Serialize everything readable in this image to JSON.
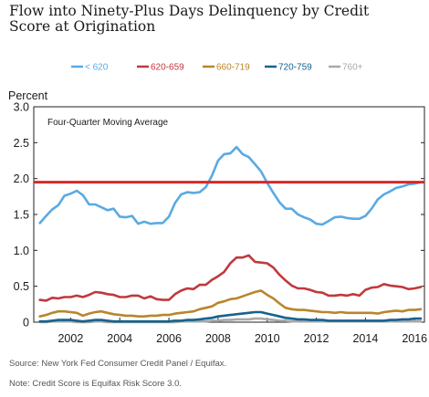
{
  "chart_data": {
    "type": "line",
    "title": "Flow into Ninety-Plus Days Delinquency by Credit Score at Origination",
    "ylabel": "Percent",
    "annotation": "Four-Quarter Moving Average",
    "ylim": [
      0,
      3.0
    ],
    "yticks": [
      "0",
      "0.5",
      "1.0",
      "1.5",
      "2.0",
      "2.5",
      "3.0"
    ],
    "xlim": [
      2000.5,
      2016.4
    ],
    "xticks": [
      "2002",
      "2004",
      "2006",
      "2008",
      "2010",
      "2012",
      "2014",
      "2016"
    ],
    "grid": false,
    "legend_position": "top",
    "reference_line": {
      "value": 1.95,
      "color": "#d62828"
    },
    "x": [
      2000.75,
      2001.0,
      2001.25,
      2001.5,
      2001.75,
      2002.0,
      2002.25,
      2002.5,
      2002.75,
      2003.0,
      2003.25,
      2003.5,
      2003.75,
      2004.0,
      2004.25,
      2004.5,
      2004.75,
      2005.0,
      2005.25,
      2005.5,
      2005.75,
      2006.0,
      2006.25,
      2006.5,
      2006.75,
      2007.0,
      2007.25,
      2007.5,
      2007.75,
      2008.0,
      2008.25,
      2008.5,
      2008.75,
      2009.0,
      2009.25,
      2009.5,
      2009.75,
      2010.0,
      2010.25,
      2010.5,
      2010.75,
      2011.0,
      2011.25,
      2011.5,
      2011.75,
      2012.0,
      2012.25,
      2012.5,
      2012.75,
      2013.0,
      2013.25,
      2013.5,
      2013.75,
      2014.0,
      2014.25,
      2014.5,
      2014.75,
      2015.0,
      2015.25,
      2015.5,
      2015.75,
      2016.0,
      2016.25
    ],
    "series": [
      {
        "name": "< 620",
        "color": "#5aaae2",
        "values": [
          1.38,
          1.48,
          1.57,
          1.63,
          1.76,
          1.79,
          1.83,
          1.77,
          1.64,
          1.64,
          1.6,
          1.56,
          1.58,
          1.47,
          1.46,
          1.48,
          1.37,
          1.4,
          1.37,
          1.38,
          1.38,
          1.47,
          1.66,
          1.78,
          1.81,
          1.8,
          1.81,
          1.88,
          2.04,
          2.25,
          2.34,
          2.35,
          2.44,
          2.34,
          2.3,
          2.2,
          2.1,
          1.94,
          1.8,
          1.67,
          1.58,
          1.58,
          1.5,
          1.46,
          1.43,
          1.37,
          1.36,
          1.41,
          1.46,
          1.47,
          1.45,
          1.44,
          1.44,
          1.48,
          1.58,
          1.71,
          1.78,
          1.82,
          1.87,
          1.89,
          1.92,
          1.93,
          1.95
        ]
      },
      {
        "name": "620-659",
        "color": "#c0393c",
        "values": [
          0.31,
          0.3,
          0.34,
          0.33,
          0.35,
          0.35,
          0.37,
          0.35,
          0.38,
          0.42,
          0.41,
          0.39,
          0.38,
          0.35,
          0.35,
          0.37,
          0.37,
          0.33,
          0.36,
          0.32,
          0.31,
          0.31,
          0.39,
          0.44,
          0.47,
          0.46,
          0.52,
          0.52,
          0.59,
          0.64,
          0.7,
          0.82,
          0.9,
          0.9,
          0.93,
          0.84,
          0.83,
          0.82,
          0.76,
          0.66,
          0.58,
          0.51,
          0.47,
          0.47,
          0.45,
          0.42,
          0.41,
          0.37,
          0.37,
          0.38,
          0.37,
          0.39,
          0.37,
          0.45,
          0.48,
          0.49,
          0.53,
          0.51,
          0.5,
          0.49,
          0.46,
          0.47,
          0.49
        ]
      },
      {
        "name": "660-719",
        "color": "#b8862c",
        "values": [
          0.08,
          0.1,
          0.13,
          0.15,
          0.15,
          0.14,
          0.13,
          0.09,
          0.12,
          0.14,
          0.15,
          0.13,
          0.11,
          0.1,
          0.09,
          0.09,
          0.08,
          0.08,
          0.09,
          0.09,
          0.1,
          0.1,
          0.12,
          0.13,
          0.14,
          0.15,
          0.18,
          0.2,
          0.22,
          0.27,
          0.29,
          0.32,
          0.33,
          0.36,
          0.39,
          0.42,
          0.44,
          0.38,
          0.33,
          0.26,
          0.2,
          0.18,
          0.17,
          0.17,
          0.16,
          0.15,
          0.14,
          0.14,
          0.13,
          0.14,
          0.13,
          0.13,
          0.13,
          0.13,
          0.13,
          0.12,
          0.14,
          0.15,
          0.16,
          0.15,
          0.17,
          0.17,
          0.18
        ]
      },
      {
        "name": "720-759",
        "color": "#16628e",
        "values": [
          0.01,
          0.01,
          0.02,
          0.03,
          0.03,
          0.03,
          0.02,
          0.01,
          0.02,
          0.03,
          0.03,
          0.02,
          0.01,
          0.01,
          0.01,
          0.01,
          0.01,
          0.01,
          0.01,
          0.01,
          0.01,
          0.01,
          0.02,
          0.02,
          0.03,
          0.03,
          0.04,
          0.05,
          0.06,
          0.08,
          0.09,
          0.1,
          0.11,
          0.12,
          0.13,
          0.14,
          0.14,
          0.12,
          0.1,
          0.08,
          0.06,
          0.05,
          0.04,
          0.04,
          0.03,
          0.03,
          0.03,
          0.02,
          0.02,
          0.02,
          0.02,
          0.02,
          0.02,
          0.02,
          0.02,
          0.02,
          0.02,
          0.03,
          0.03,
          0.04,
          0.04,
          0.05,
          0.05
        ]
      },
      {
        "name": "760+",
        "color": "#a8a8a8",
        "values": [
          0.0,
          0.0,
          0.01,
          0.01,
          0.01,
          0.01,
          0.0,
          0.0,
          0.0,
          0.01,
          0.01,
          0.0,
          0.0,
          0.0,
          0.0,
          0.0,
          0.0,
          0.0,
          0.0,
          0.0,
          0.0,
          0.0,
          0.0,
          0.01,
          0.01,
          0.01,
          0.01,
          0.01,
          0.02,
          0.02,
          0.03,
          0.03,
          0.04,
          0.04,
          0.04,
          0.05,
          0.05,
          0.04,
          0.03,
          0.02,
          0.02,
          0.01,
          0.01,
          0.01,
          0.01,
          0.01,
          0.01,
          0.01,
          0.01,
          0.01,
          0.01,
          0.01,
          0.01,
          0.01,
          0.01,
          0.01,
          0.01,
          0.01,
          0.01,
          0.01,
          0.01,
          0.01,
          0.01
        ]
      }
    ]
  },
  "footer": {
    "source": "Source: New York Fed Consumer Credit Panel / Equifax.",
    "note": "Note: Credit Score is Equifax Risk Score 3.0."
  }
}
